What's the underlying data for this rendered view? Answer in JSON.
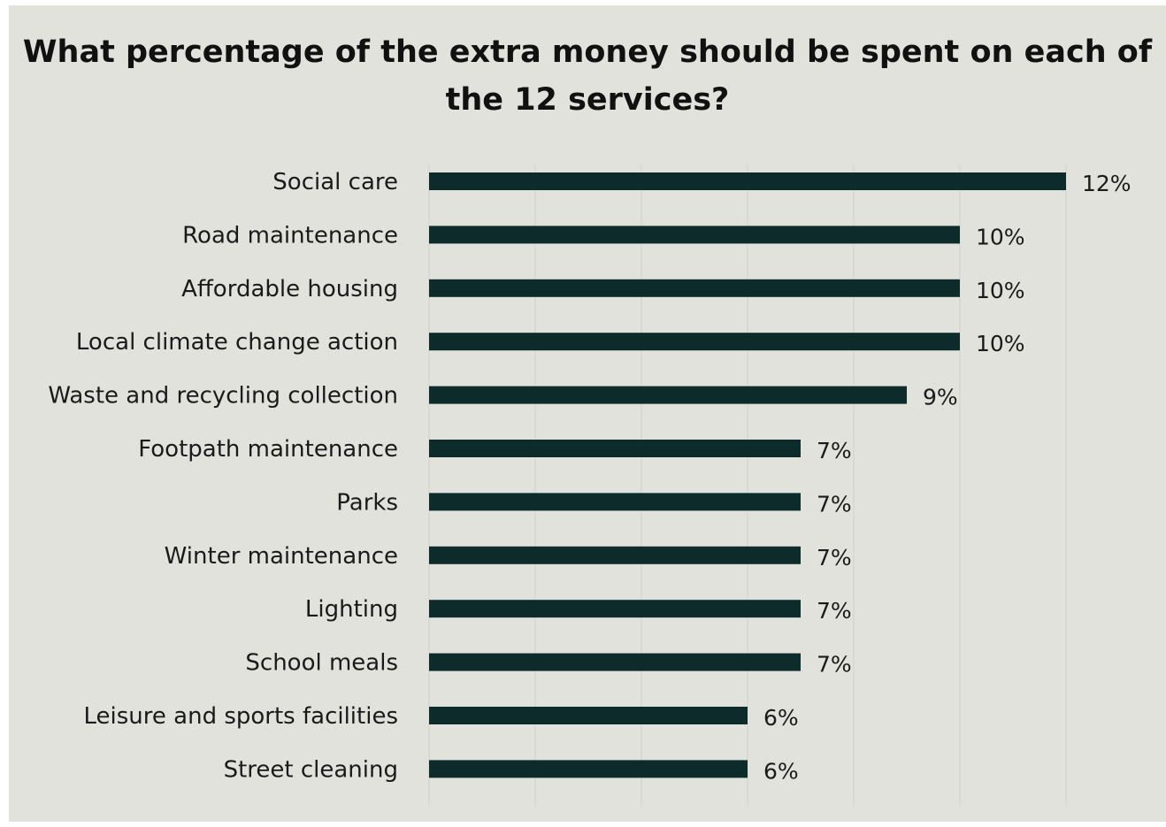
{
  "chart_data": {
    "type": "bar",
    "orientation": "horizontal",
    "title": "What percentage of the extra money should be spent on each of the 12 services?",
    "categories": [
      "Social care",
      "Road maintenance",
      "Affordable housing",
      "Local climate change action",
      "Waste and recycling collection",
      "Footpath maintenance",
      "Parks",
      "Winter maintenance",
      "Lighting",
      "School meals",
      "Leisure and sports facilities",
      "Street cleaning"
    ],
    "values": [
      12,
      10,
      10,
      10,
      9,
      7,
      7,
      7,
      7,
      7,
      6,
      6
    ],
    "value_labels": [
      "12%",
      "10%",
      "10%",
      "10%",
      "9%",
      "7%",
      "7%",
      "7%",
      "7%",
      "7%",
      "6%",
      "6%"
    ],
    "unit": "%",
    "xlabel": "",
    "ylabel": "",
    "xlim": [
      0,
      14
    ],
    "grid": true,
    "legend": "none",
    "bar_color": "#0d2b2a",
    "background_color": "#e2e2dc"
  }
}
